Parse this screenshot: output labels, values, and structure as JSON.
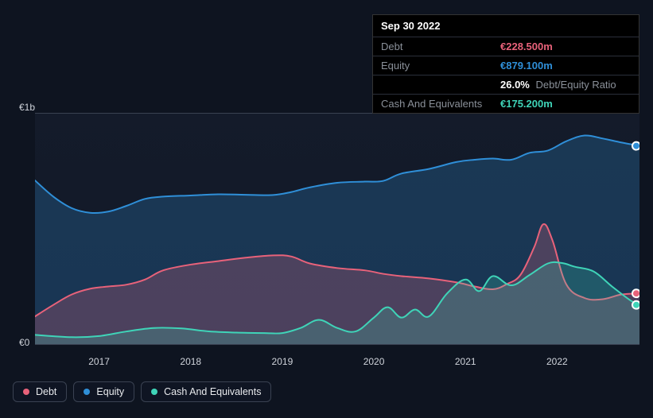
{
  "tooltip": {
    "date": "Sep 30 2022",
    "rows": {
      "debt": {
        "label": "Debt",
        "value": "€228.500m"
      },
      "equity": {
        "label": "Equity",
        "value": "€879.100m"
      },
      "ratio": {
        "label": "",
        "value": "26.0%",
        "suffix": "Debt/Equity Ratio"
      },
      "cash": {
        "label": "Cash And Equivalents",
        "value": "€175.200m"
      }
    }
  },
  "chart": {
    "type": "area",
    "background_gradient": [
      "#1a2234",
      "#111a2c"
    ],
    "grid_color": "#3a4252",
    "y_axis": {
      "min": 0,
      "max": 1000,
      "ticks": [
        {
          "v": 1000,
          "label": "€1b"
        },
        {
          "v": 0,
          "label": "€0"
        }
      ],
      "label_color": "#cfd3da",
      "label_fontsize": 12
    },
    "x_axis": {
      "start": 2016.3,
      "end": 2022.9,
      "ticks": [
        2017,
        2018,
        2019,
        2020,
        2021,
        2022
      ],
      "label_color": "#cfd3da",
      "label_fontsize": 12
    },
    "series": {
      "equity": {
        "label": "Equity",
        "color": "#2f8fd8",
        "fill_opacity": 0.25,
        "line_width": 2,
        "data": [
          [
            2016.3,
            710
          ],
          [
            2016.5,
            640
          ],
          [
            2016.7,
            590
          ],
          [
            2016.9,
            570
          ],
          [
            2017.1,
            575
          ],
          [
            2017.3,
            600
          ],
          [
            2017.5,
            630
          ],
          [
            2017.7,
            640
          ],
          [
            2018.0,
            645
          ],
          [
            2018.3,
            650
          ],
          [
            2018.6,
            648
          ],
          [
            2018.9,
            647
          ],
          [
            2019.1,
            660
          ],
          [
            2019.3,
            680
          ],
          [
            2019.6,
            700
          ],
          [
            2019.9,
            705
          ],
          [
            2020.1,
            708
          ],
          [
            2020.3,
            740
          ],
          [
            2020.6,
            760
          ],
          [
            2020.9,
            790
          ],
          [
            2021.1,
            800
          ],
          [
            2021.3,
            805
          ],
          [
            2021.5,
            800
          ],
          [
            2021.7,
            830
          ],
          [
            2021.9,
            840
          ],
          [
            2022.1,
            880
          ],
          [
            2022.3,
            905
          ],
          [
            2022.5,
            892
          ],
          [
            2022.7,
            875
          ],
          [
            2022.9,
            860
          ]
        ]
      },
      "debt": {
        "label": "Debt",
        "color": "#e8627a",
        "fill_opacity": 0.25,
        "line_width": 2,
        "data": [
          [
            2016.3,
            120
          ],
          [
            2016.5,
            170
          ],
          [
            2016.7,
            215
          ],
          [
            2016.9,
            240
          ],
          [
            2017.1,
            250
          ],
          [
            2017.3,
            258
          ],
          [
            2017.5,
            280
          ],
          [
            2017.7,
            320
          ],
          [
            2018.0,
            345
          ],
          [
            2018.3,
            360
          ],
          [
            2018.6,
            375
          ],
          [
            2018.9,
            385
          ],
          [
            2019.1,
            380
          ],
          [
            2019.3,
            350
          ],
          [
            2019.6,
            330
          ],
          [
            2019.9,
            320
          ],
          [
            2020.1,
            305
          ],
          [
            2020.3,
            295
          ],
          [
            2020.6,
            285
          ],
          [
            2020.9,
            268
          ],
          [
            2021.1,
            250
          ],
          [
            2021.3,
            238
          ],
          [
            2021.45,
            260
          ],
          [
            2021.6,
            300
          ],
          [
            2021.75,
            420
          ],
          [
            2021.85,
            520
          ],
          [
            2021.95,
            450
          ],
          [
            2022.1,
            260
          ],
          [
            2022.3,
            200
          ],
          [
            2022.5,
            195
          ],
          [
            2022.7,
            215
          ],
          [
            2022.9,
            220
          ]
        ]
      },
      "cash": {
        "label": "Cash And Equivalents",
        "color": "#3fd4b8",
        "fill_opacity": 0.22,
        "line_width": 2,
        "data": [
          [
            2016.3,
            40
          ],
          [
            2016.7,
            30
          ],
          [
            2017.0,
            35
          ],
          [
            2017.3,
            55
          ],
          [
            2017.6,
            70
          ],
          [
            2017.9,
            68
          ],
          [
            2018.2,
            55
          ],
          [
            2018.5,
            50
          ],
          [
            2018.8,
            48
          ],
          [
            2019.0,
            48
          ],
          [
            2019.2,
            70
          ],
          [
            2019.4,
            105
          ],
          [
            2019.6,
            70
          ],
          [
            2019.8,
            55
          ],
          [
            2020.0,
            115
          ],
          [
            2020.15,
            160
          ],
          [
            2020.3,
            115
          ],
          [
            2020.45,
            150
          ],
          [
            2020.6,
            120
          ],
          [
            2020.8,
            220
          ],
          [
            2021.0,
            280
          ],
          [
            2021.15,
            230
          ],
          [
            2021.3,
            295
          ],
          [
            2021.5,
            255
          ],
          [
            2021.7,
            300
          ],
          [
            2021.9,
            350
          ],
          [
            2022.05,
            352
          ],
          [
            2022.2,
            335
          ],
          [
            2022.4,
            315
          ],
          [
            2022.6,
            250
          ],
          [
            2022.8,
            190
          ],
          [
            2022.9,
            170
          ]
        ]
      }
    },
    "legend": [
      {
        "key": "debt",
        "label": "Debt"
      },
      {
        "key": "equity",
        "label": "Equity"
      },
      {
        "key": "cash",
        "label": "Cash And Equivalents"
      }
    ],
    "end_markers": [
      {
        "key": "equity",
        "y": 860
      },
      {
        "key": "debt",
        "y": 220
      },
      {
        "key": "cash",
        "y": 170
      }
    ]
  }
}
